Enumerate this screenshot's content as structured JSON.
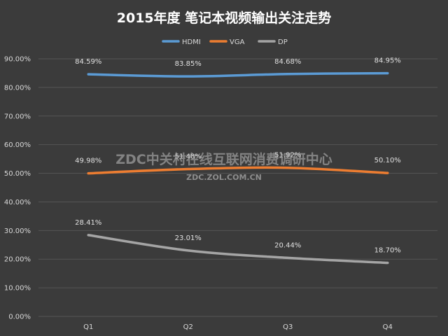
{
  "chart_data": {
    "type": "line",
    "title": "2015年度 笔记本视频输出关注走势",
    "categories": [
      "Q1",
      "Q2",
      "Q3",
      "Q4"
    ],
    "series": [
      {
        "name": "HDMI",
        "color": "#5b9bd5",
        "values": [
          84.59,
          83.85,
          84.68,
          84.95
        ],
        "labels": [
          "84.59%",
          "83.85%",
          "84.68%",
          "84.95%"
        ]
      },
      {
        "name": "VGA",
        "color": "#ed7d31",
        "values": [
          49.98,
          51.48,
          51.92,
          50.1
        ],
        "labels": [
          "49.98%",
          "51.48%",
          "51.92%",
          "50.10%"
        ]
      },
      {
        "name": "DP",
        "color": "#a5a5a5",
        "values": [
          28.41,
          23.01,
          20.44,
          18.7
        ],
        "labels": [
          "28.41%",
          "23.01%",
          "20.44%",
          "18.70%"
        ]
      }
    ],
    "ylim": [
      0,
      90
    ],
    "yticks": [
      "0.00%",
      "10.00%",
      "20.00%",
      "30.00%",
      "40.00%",
      "50.00%",
      "60.00%",
      "70.00%",
      "80.00%",
      "90.00%"
    ],
    "xlabel": "",
    "ylabel": "",
    "grid": true,
    "legend": "top"
  },
  "watermark": {
    "line1": "ZDC中关村在线互联网消费调研中心",
    "line2": "ZDC.ZOL.COM.CN"
  }
}
